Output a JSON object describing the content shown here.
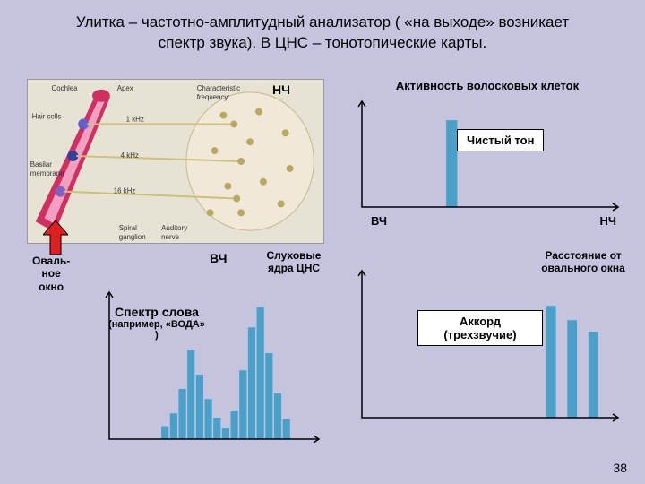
{
  "title": "Улитка – частотно-амплитудный анализатор ( «на выходе» возникает спектр звука). В ЦНС – тонотопические карты.",
  "labels": {
    "nch": "НЧ",
    "vch": "ВЧ",
    "oval_window": "Оваль-\nное\nокно",
    "slukh": "Слуховые ядра ЦНС",
    "rasst": "Расстояние от овального окна"
  },
  "cochlea_img": {
    "bg": "#e6e2d4",
    "labels": {
      "cochlea": "Cochlea",
      "apex": "Apex",
      "char_freq": "Characteristic\nfrequency:",
      "hair": "Hair cells",
      "basilar": "Basilar\nmembrane",
      "spiral": "Spiral\nganglion",
      "auditory": "Auditory\nnerve",
      "f1": "1 kHz",
      "f4": "4 kHz",
      "f16": "16 kHz"
    },
    "cone_outer": "#d03060",
    "cone_inner": "#f0a0c0",
    "hair_colors": [
      "#6060d0",
      "#3040a0",
      "#8060c0"
    ],
    "oval_fill": "#f0e8d8",
    "nerve_color": "#d0c078"
  },
  "chart_tone": {
    "title": "Активность волосковых клеток",
    "box_label": "Чистый тон",
    "axis_left": "ВЧ",
    "axis_right": "НЧ",
    "bars": [
      {
        "x": 0.32,
        "h": 0.85,
        "w": 0.04
      }
    ],
    "bar_color": "#4aa0c8"
  },
  "chart_spectrum": {
    "caption_big": "Спектр слова",
    "caption_small": "(например, «ВОДА» )",
    "bars": [
      {
        "x": 0.24,
        "h": 0.09
      },
      {
        "x": 0.28,
        "h": 0.18
      },
      {
        "x": 0.32,
        "h": 0.35
      },
      {
        "x": 0.36,
        "h": 0.62
      },
      {
        "x": 0.4,
        "h": 0.45
      },
      {
        "x": 0.44,
        "h": 0.28
      },
      {
        "x": 0.48,
        "h": 0.15
      },
      {
        "x": 0.52,
        "h": 0.08
      },
      {
        "x": 0.56,
        "h": 0.2
      },
      {
        "x": 0.6,
        "h": 0.48
      },
      {
        "x": 0.64,
        "h": 0.78
      },
      {
        "x": 0.68,
        "h": 0.92
      },
      {
        "x": 0.72,
        "h": 0.6
      },
      {
        "x": 0.76,
        "h": 0.32
      },
      {
        "x": 0.8,
        "h": 0.14
      }
    ],
    "bar_w": 0.032,
    "bar_color": "#4aa0c8"
  },
  "chart_chord": {
    "box_label": "Аккорд (трехзвучие)",
    "bars": [
      {
        "x": 0.7,
        "h": 0.78,
        "w": 0.035
      },
      {
        "x": 0.78,
        "h": 0.68,
        "w": 0.035
      },
      {
        "x": 0.86,
        "h": 0.6,
        "w": 0.035
      }
    ],
    "bar_color": "#4aa0c8"
  },
  "page_num": "38",
  "arrow_color": "#e02020"
}
